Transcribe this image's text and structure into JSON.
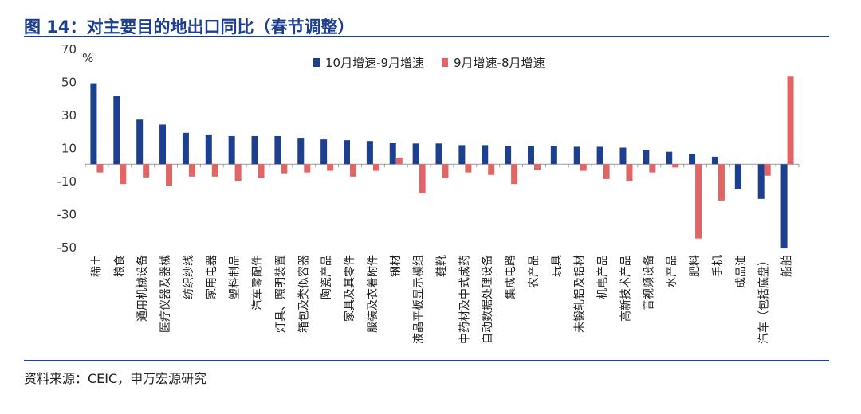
{
  "header": {
    "title": "图 14：对主要目的地出口同比（春节调整）"
  },
  "footer": {
    "source": "资料来源：CEIC，申万宏源研究"
  },
  "chart_data": {
    "type": "bar",
    "unit": "%",
    "ylim": [
      -50,
      70
    ],
    "yticks": [
      70,
      50,
      30,
      10,
      -10,
      -30,
      -50
    ],
    "legend_position": "top",
    "colors": {
      "series1": "#1c3f8f",
      "series2": "#e06666"
    },
    "categories": [
      "稀土",
      "粮食",
      "通用机械设备",
      "医疗仪器及器械",
      "纺织纱线",
      "家用电器",
      "塑料制品",
      "汽车零配件",
      "灯具、照明装置",
      "箱包及类似容器",
      "陶瓷产品",
      "家具及其零件",
      "服装及衣着附件",
      "钢材",
      "液晶平板显示模组",
      "鞋靴",
      "中药材及中式成药",
      "自动数据处理设备",
      "集成电路",
      "农产品",
      "玩具",
      "未锻轧铝及铝材",
      "机电产品",
      "高新技术产品",
      "音视频设备",
      "水产品",
      "肥料",
      "手机",
      "成品油",
      "汽车（包括底盘）",
      "船舶"
    ],
    "series": [
      {
        "name": "10月增速-9月增速",
        "values": [
          49,
          41.5,
          27,
          24,
          19,
          18,
          17,
          17,
          17,
          16,
          15,
          14.5,
          14,
          13,
          12.5,
          12.5,
          11.5,
          11.5,
          11,
          11,
          11,
          10.5,
          10.5,
          10,
          8.5,
          7.5,
          6,
          4.5,
          -15,
          -21,
          -51
        ]
      },
      {
        "name": "9月增速-8月增速",
        "values": [
          -5,
          -12,
          -8,
          -13,
          -7.5,
          -7.5,
          -10,
          -8.5,
          -5.5,
          -5,
          -4,
          -7.5,
          -4,
          4,
          -17.5,
          -8.5,
          -5,
          -6.5,
          -12,
          -3.5,
          0,
          -4,
          -9,
          -10,
          -5,
          -2,
          -45,
          -22,
          0,
          -7,
          53
        ]
      }
    ]
  }
}
